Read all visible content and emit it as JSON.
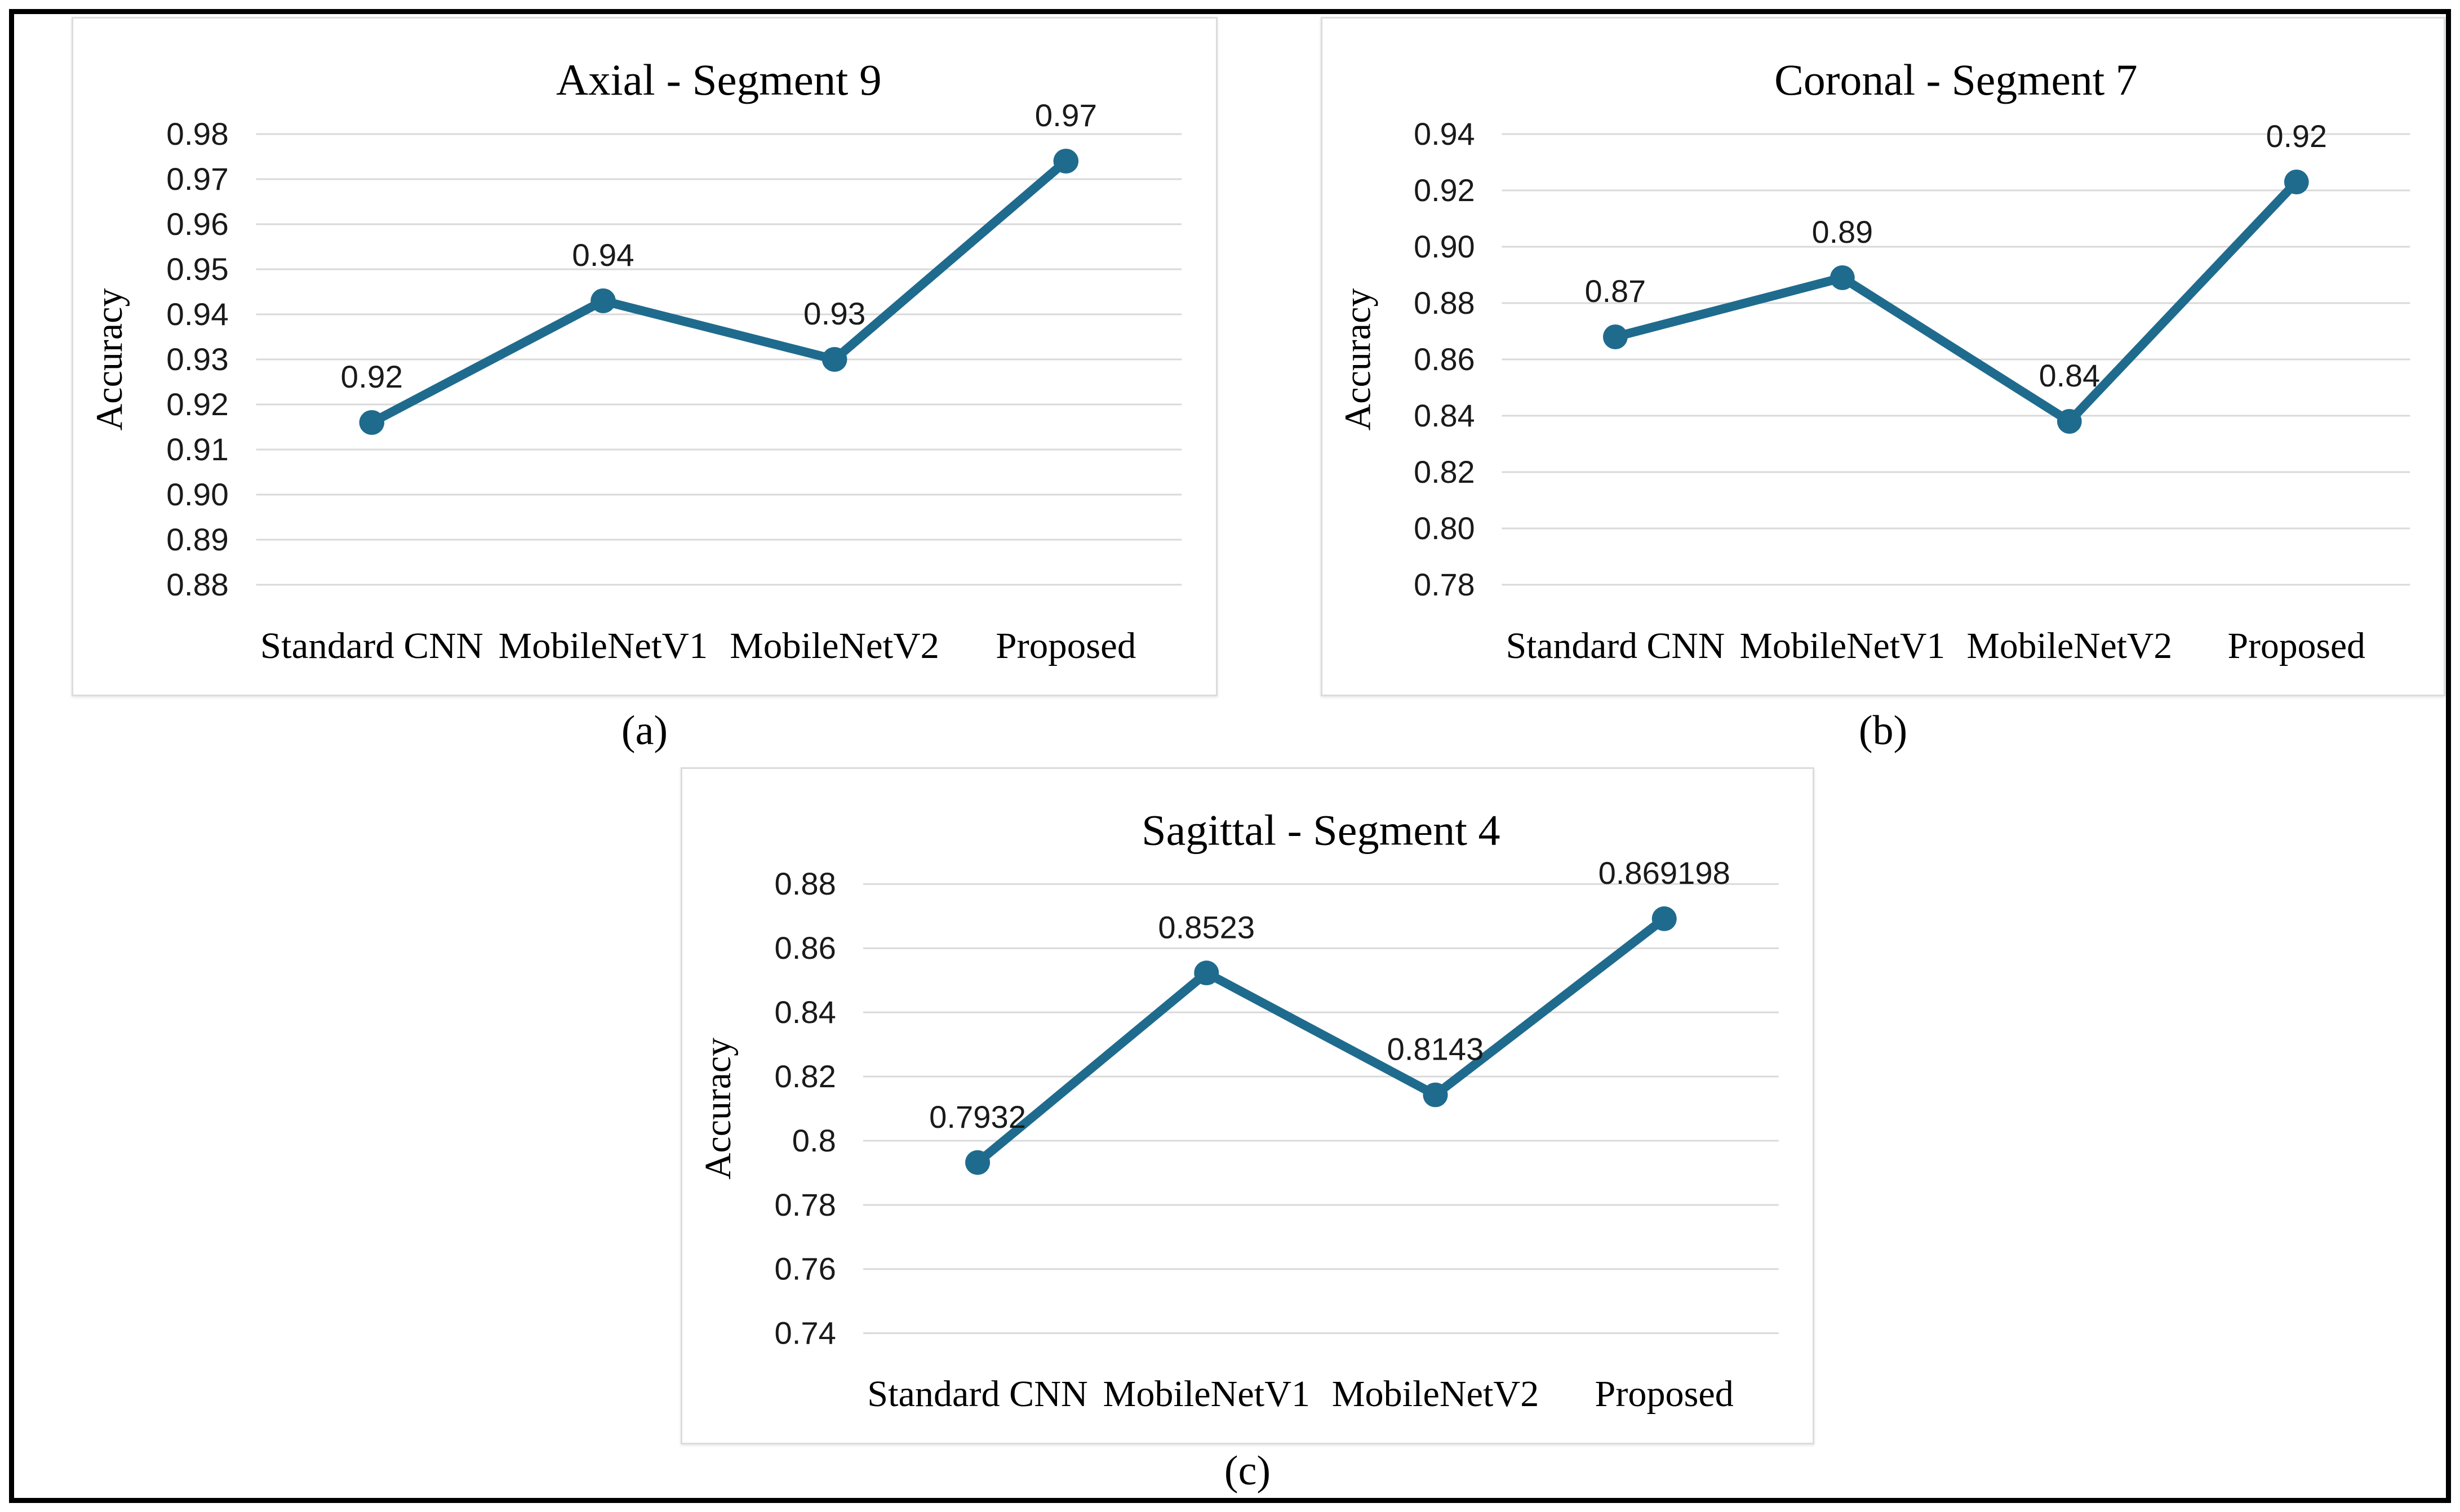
{
  "style": {
    "line_color": "#1f6b8e",
    "marker_color": "#1f6b8e",
    "grid_color": "#d9d9d9",
    "panel_border_color": "#dcdcdc",
    "outer_border_color": "#000000",
    "title_color": "#000000",
    "tick_label_color": "#1a1a1a",
    "data_label_color": "#1a1a1a",
    "category_label_color": "#000000",
    "axis_label_color": "#000000"
  },
  "chart_data": [
    {
      "type": "line",
      "id": "a",
      "title": "Axial - Segment 9",
      "caption": "(a)",
      "xlabel": "",
      "ylabel": "Accuracy",
      "categories": [
        "Standard CNN",
        "MobileNetV1",
        "MobileNetV2",
        "Proposed"
      ],
      "values": [
        0.916,
        0.943,
        0.93,
        0.974
      ],
      "data_labels": [
        "0.92",
        "0.94",
        "0.93",
        "0.97"
      ],
      "ylim": [
        0.88,
        0.98
      ],
      "ytick_labels": [
        "0.98",
        "0.97",
        "0.96",
        "0.95",
        "0.94",
        "0.93",
        "0.92",
        "0.91",
        "0.90",
        "0.89",
        "0.88"
      ],
      "grid": true,
      "legend": false,
      "marker": "circle"
    },
    {
      "type": "line",
      "id": "b",
      "title": "Coronal - Segment 7",
      "caption": "(b)",
      "xlabel": "",
      "ylabel": "Accuracy",
      "categories": [
        "Standard CNN",
        "MobileNetV1",
        "MobileNetV2",
        "Proposed"
      ],
      "values": [
        0.868,
        0.889,
        0.838,
        0.923
      ],
      "data_labels": [
        "0.87",
        "0.89",
        "0.84",
        "0.92"
      ],
      "ylim": [
        0.78,
        0.94
      ],
      "ytick_labels": [
        "0.94",
        "0.92",
        "0.90",
        "0.88",
        "0.86",
        "0.84",
        "0.82",
        "0.80",
        "0.78"
      ],
      "grid": true,
      "legend": false,
      "marker": "circle"
    },
    {
      "type": "line",
      "id": "c",
      "title": "Sagittal - Segment 4",
      "caption": "(c)",
      "xlabel": "",
      "ylabel": "Accuracy",
      "categories": [
        "Standard CNN",
        "MobileNetV1",
        "MobileNetV2",
        "Proposed"
      ],
      "values": [
        0.7932,
        0.8523,
        0.8143,
        0.869198
      ],
      "data_labels": [
        "0.7932",
        "0.8523",
        "0.8143",
        "0.869198"
      ],
      "ylim": [
        0.74,
        0.88
      ],
      "ytick_labels": [
        "0.88",
        "0.86",
        "0.84",
        "0.82",
        "0.8",
        "0.78",
        "0.76",
        "0.74"
      ],
      "grid": true,
      "legend": false,
      "marker": "circle"
    }
  ]
}
